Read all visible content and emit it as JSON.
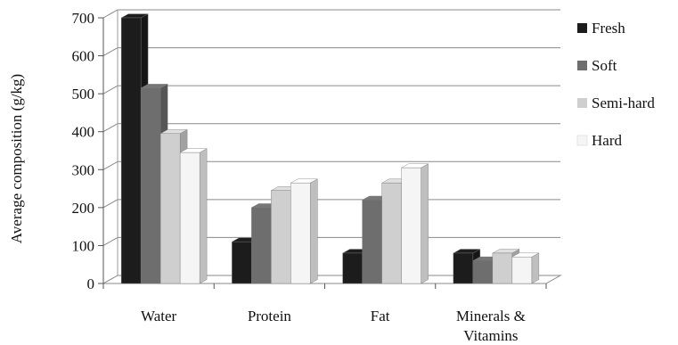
{
  "chart_data": {
    "type": "bar",
    "title": "",
    "xlabel": "",
    "ylabel": "Average composition (g/kg)",
    "ylim": [
      0,
      700
    ],
    "yticks": [
      0,
      100,
      200,
      300,
      400,
      500,
      600,
      700
    ],
    "ytick_labels": [
      "0",
      "100",
      "200",
      "300",
      "400",
      "500",
      "600",
      "700"
    ],
    "categories": [
      {
        "line1": "Water",
        "line2": ""
      },
      {
        "line1": "Protein",
        "line2": ""
      },
      {
        "line1": "Fat",
        "line2": ""
      },
      {
        "line1": "Minerals &",
        "line2": "Vitamins"
      }
    ],
    "series": [
      {
        "name": "Fresh",
        "values": [
          700,
          110,
          80,
          80
        ]
      },
      {
        "name": "Soft",
        "values": [
          515,
          200,
          220,
          60
        ]
      },
      {
        "name": "Semi-hard",
        "values": [
          395,
          245,
          265,
          80
        ]
      },
      {
        "name": "Hard",
        "values": [
          345,
          265,
          305,
          70
        ]
      }
    ],
    "grid": true,
    "legend_position": "right",
    "style": "3d-clustered-column",
    "colors": {
      "Fresh": "#1c1c1c",
      "Soft": "#6e6e6e",
      "Semi-hard": "#cfcfcf",
      "Hard": "#f5f5f5"
    }
  }
}
